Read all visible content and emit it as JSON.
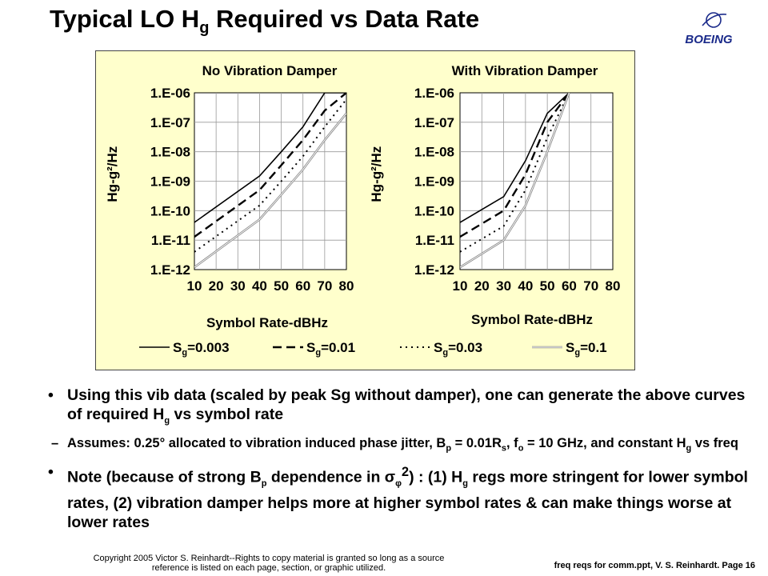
{
  "slide": {
    "title_main": "Typical LO H",
    "title_sub": "g",
    "title_rest": " Required vs Data Rate",
    "logo_text": "BOEING"
  },
  "chart_data": [
    {
      "type": "line",
      "title": "No Vibration Damper",
      "xlabel": "Symbol Rate-dBHz",
      "ylabel": "Hg-g²/Hz",
      "y_scale": "log",
      "xlim": [
        10,
        80
      ],
      "ylim": [
        1e-12,
        1e-06
      ],
      "x_ticks": [
        "10",
        "20",
        "30",
        "40",
        "50",
        "60",
        "70",
        "80"
      ],
      "y_ticks": [
        "1.E-06",
        "1.E-07",
        "1.E-08",
        "1.E-09",
        "1.E-10",
        "1.E-11",
        "1.E-12"
      ],
      "grid": true,
      "series": [
        {
          "name": "Sg=0.003",
          "style": "solid",
          "x": [
            10,
            40,
            50,
            60,
            70,
            80
          ],
          "y": [
            4e-11,
            1.5e-09,
            1e-08,
            7e-08,
            1e-06,
            1e-06
          ]
        },
        {
          "name": "Sg=0.01",
          "style": "dash",
          "x": [
            10,
            40,
            50,
            60,
            70,
            80
          ],
          "y": [
            1.3e-11,
            5e-10,
            3.5e-09,
            2.5e-08,
            2.5e-07,
            1e-06
          ]
        },
        {
          "name": "Sg=0.03",
          "style": "dot",
          "x": [
            10,
            40,
            50,
            60,
            70,
            80
          ],
          "y": [
            4e-12,
            1.5e-10,
            1e-09,
            7e-09,
            7e-08,
            6e-07
          ]
        },
        {
          "name": "Sg=0.1",
          "style": "double",
          "x": [
            10,
            40,
            50,
            60,
            70,
            80
          ],
          "y": [
            1.2e-12,
            5e-11,
            3.5e-10,
            2.5e-09,
            2.5e-08,
            2e-07
          ]
        }
      ]
    },
    {
      "type": "line",
      "title": "With Vibration Damper",
      "xlabel": "Symbol Rate-dBHz",
      "ylabel": "Hg-g²/Hz",
      "y_scale": "log",
      "xlim": [
        10,
        80
      ],
      "ylim": [
        1e-12,
        1e-06
      ],
      "x_ticks": [
        "10",
        "20",
        "30",
        "40",
        "50",
        "60",
        "70",
        "80"
      ],
      "y_ticks": [
        "1.E-06",
        "1.E-07",
        "1.E-08",
        "1.E-09",
        "1.E-10",
        "1.E-11",
        "1.E-12"
      ],
      "grid": true,
      "series": [
        {
          "name": "Sg=0.003",
          "style": "solid",
          "x": [
            10,
            30,
            40,
            50,
            60
          ],
          "y": [
            4e-11,
            3e-10,
            5e-09,
            2e-07,
            1e-06
          ]
        },
        {
          "name": "Sg=0.01",
          "style": "dash",
          "x": [
            10,
            30,
            40,
            50,
            60
          ],
          "y": [
            1.3e-11,
            1e-10,
            1.7e-09,
            1e-07,
            1e-06
          ]
        },
        {
          "name": "Sg=0.03",
          "style": "dot",
          "x": [
            10,
            30,
            40,
            50,
            60
          ],
          "y": [
            4e-12,
            3e-11,
            5e-10,
            3e-08,
            1e-06
          ]
        },
        {
          "name": "Sg=0.1",
          "style": "double",
          "x": [
            10,
            30,
            40,
            50,
            60
          ],
          "y": [
            1.2e-12,
            1e-11,
            1.5e-10,
            1e-08,
            1e-06
          ]
        }
      ]
    }
  ],
  "legend": [
    {
      "style": "solid",
      "text_pre": "S",
      "text_sub": "g",
      "text_post": "=0.003"
    },
    {
      "style": "dash",
      "text_pre": "S",
      "text_sub": "g",
      "text_post": "=0.01"
    },
    {
      "style": "dot",
      "text_pre": "S",
      "text_sub": "g",
      "text_post": "=0.03"
    },
    {
      "style": "double",
      "text_pre": "S",
      "text_sub": "g",
      "text_post": "=0.1"
    }
  ],
  "bullets": {
    "b1": {
      "dot": "•",
      "p1": "Using this vib data (scaled by peak Sg without damper), one can generate the above curves of required H",
      "sub1": "g",
      "p2": " vs symbol rate"
    },
    "b1_sub": {
      "dash": "–",
      "p1": "Assumes: 0.25° allocated to vibration induced phase jitter, B",
      "sub1": "p",
      "p2": " = 0.01R",
      "sub2": "s",
      "p3": ", f",
      "sub3": "o",
      "p4": " = 10 GHz, and constant H",
      "sub4": "g",
      "p5": " vs freq"
    },
    "b2": {
      "dot": "•",
      "p1": "Note (because of strong B",
      "sub1": "p",
      "p2": " dependence in σ",
      "sub2": "φ",
      "sup2": "2",
      "p3": ") : (1) H",
      "sub3": "g",
      "p4": " regs more stringent for lower symbol rates, (2) vibration damper helps more at higher symbol rates & can make things worse at lower rates"
    }
  },
  "footer": {
    "copyright": "Copyright 2005 Victor S. Reinhardt--Rights to copy material is granted so long as a source reference is listed on each page, section, or graphic utilized.",
    "right": "freq reqs for comm.ppt, V. S. Reinhardt. Page 16"
  }
}
